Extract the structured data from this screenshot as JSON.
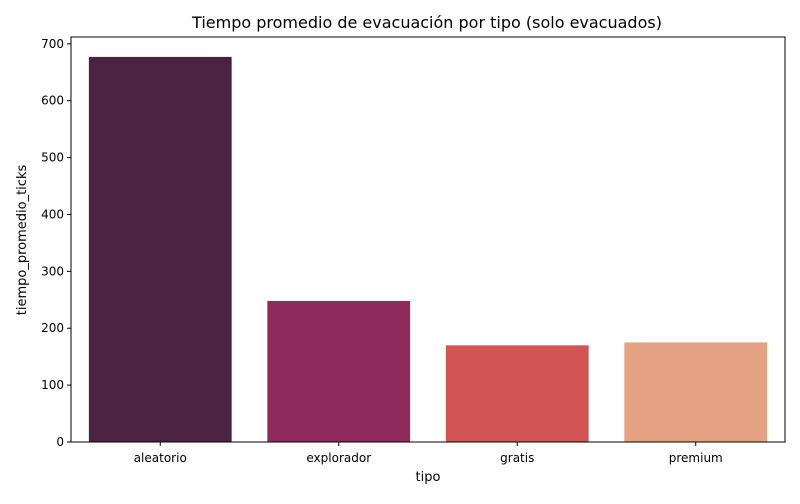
{
  "chart_data": {
    "type": "bar",
    "title": "Tiempo promedio de evacuación por tipo (solo evacuados)",
    "xlabel": "tipo",
    "ylabel": "tiempo_promedio_ticks",
    "categories": [
      "aleatorio",
      "explorador",
      "gratis",
      "premium"
    ],
    "values": [
      677,
      248,
      170,
      175
    ],
    "ylim": [
      0,
      712
    ],
    "yticks": [
      0,
      100,
      200,
      300,
      400,
      500,
      600,
      700
    ],
    "ytick_labels": [
      "0",
      "100",
      "200",
      "300",
      "400",
      "500",
      "600",
      "700"
    ],
    "bar_colors": [
      "#4a2343",
      "#8f2b5a",
      "#d35455",
      "#e4a282"
    ],
    "grid": false,
    "legend": "none"
  }
}
